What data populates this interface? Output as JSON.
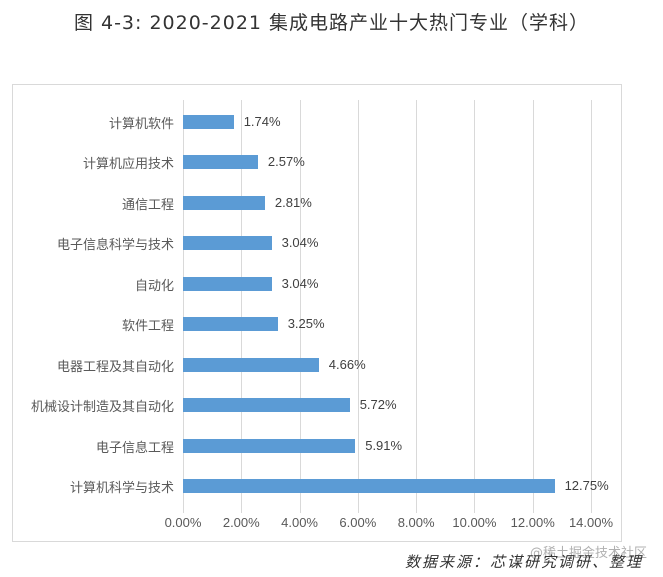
{
  "title": "图 4-3: 2020-2021 集成电路产业十大热门专业（学科）",
  "source": "数据来源：芯谋研究调研、整理",
  "watermark": "@稀土掘金技术社区",
  "colors": {
    "bar": "#5b9bd5",
    "grid": "#d9d9d9",
    "frame": "#d9d9d9"
  },
  "chart_data": {
    "type": "bar",
    "orientation": "horizontal",
    "title": "图 4-3: 2020-2021 集成电路产业十大热门专业（学科）",
    "xlabel": "",
    "ylabel": "",
    "categories": [
      "计算机软件",
      "计算机应用技术",
      "通信工程",
      "电子信息科学与技术",
      "自动化",
      "软件工程",
      "电器工程及其自动化",
      "机械设计制造及其自动化",
      "电子信息工程",
      "计算机科学与技术"
    ],
    "values": [
      1.74,
      2.57,
      2.81,
      3.04,
      3.04,
      3.25,
      4.66,
      5.72,
      5.91,
      12.75
    ],
    "value_labels": [
      "1.74%",
      "2.57%",
      "2.81%",
      "3.04%",
      "3.04%",
      "3.25%",
      "4.66%",
      "5.72%",
      "5.91%",
      "12.75%"
    ],
    "xlim": [
      0,
      14
    ],
    "xticks": [
      "0.00%",
      "2.00%",
      "4.00%",
      "6.00%",
      "8.00%",
      "10.00%",
      "12.00%",
      "14.00%"
    ],
    "grid": "vertical",
    "legend": "none",
    "source": "数据来源：芯谋研究调研、整理"
  }
}
